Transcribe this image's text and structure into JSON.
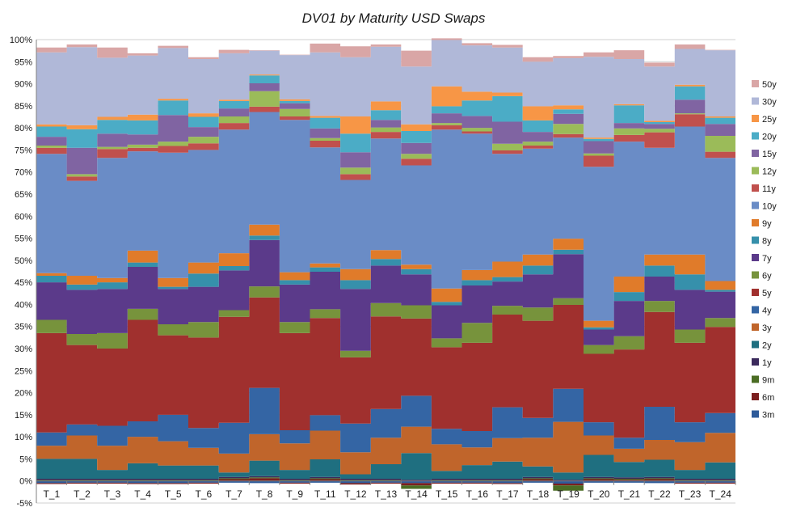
{
  "chart_data": {
    "type": "area",
    "stacked": "percent",
    "title": "DV01 by Maturity USD Swaps",
    "xlabel": "",
    "ylabel": "",
    "ylim": [
      -5,
      100
    ],
    "yticks": [
      "-5%",
      "0%",
      "5%",
      "10%",
      "15%",
      "20%",
      "25%",
      "30%",
      "35%",
      "40%",
      "45%",
      "50%",
      "55%",
      "60%",
      "65%",
      "70%",
      "75%",
      "80%",
      "85%",
      "90%",
      "95%",
      "100%"
    ],
    "grid": true,
    "legend_position": "right",
    "categories": [
      "T_1",
      "T_2",
      "T_3",
      "T_4",
      "T_5",
      "T_6",
      "T_7",
      "T_8",
      "T_9",
      "T_11",
      "T_12",
      "T_13",
      "T_14",
      "T_15",
      "T_16",
      "T_17",
      "T_18",
      "T_19",
      "T_20",
      "T_21",
      "T_22",
      "T_23",
      "T_24"
    ],
    "series": [
      {
        "name": "3m",
        "color": "#2e5b9a",
        "values": [
          -0.5,
          -0.4,
          -0.4,
          -0.5,
          -0.5,
          -0.4,
          -0.4,
          -0.5,
          -0.4,
          -0.4,
          -0.5,
          -0.4,
          -0.5,
          -0.4,
          -0.4,
          -0.5,
          -0.4,
          -0.6,
          -0.4,
          -0.4,
          -0.5,
          -0.4,
          -0.4
        ]
      },
      {
        "name": "6m",
        "color": "#7b1f1f",
        "values": [
          -0.2,
          -0.2,
          -0.2,
          -0.2,
          -0.2,
          -0.2,
          0.4,
          0.6,
          -0.2,
          0.4,
          -0.3,
          -0.2,
          -0.5,
          -0.2,
          -0.2,
          -0.2,
          0.4,
          -0.4,
          0.4,
          0.3,
          0.4,
          -0.2,
          -0.2
        ]
      },
      {
        "name": "9m",
        "color": "#4b6d24",
        "values": [
          0.2,
          0.2,
          0.2,
          0.2,
          0.2,
          0.2,
          0.2,
          0.2,
          0.2,
          0.2,
          0.2,
          0.2,
          -0.8,
          0.2,
          0.2,
          0.2,
          0.2,
          -1.2,
          0.2,
          0.2,
          0.2,
          0.2,
          0.2
        ]
      },
      {
        "name": "1y",
        "color": "#3b2a5c",
        "values": [
          0.3,
          0.3,
          0.3,
          0.3,
          0.3,
          0.3,
          0.3,
          0.3,
          0.3,
          0.3,
          0.3,
          0.3,
          0.3,
          0.3,
          0.3,
          0.3,
          0.3,
          0.3,
          0.3,
          0.3,
          0.3,
          0.3,
          0.3
        ]
      },
      {
        "name": "2y",
        "color": "#1f6f80",
        "values": [
          4.5,
          4.5,
          2.0,
          3.5,
          3.0,
          3.0,
          1.0,
          3.5,
          2.0,
          4.0,
          1.0,
          3.3,
          6.0,
          1.8,
          3.1,
          3.9,
          2.4,
          1.6,
          5.0,
          3.5,
          3.9,
          2.0,
          3.7
        ]
      },
      {
        "name": "3y",
        "color": "#c0652b",
        "values": [
          3.0,
          5.3,
          5.5,
          6.0,
          5.5,
          4.0,
          4.3,
          6.0,
          6.0,
          6.5,
          5.0,
          6.0,
          6.0,
          6.0,
          4.0,
          5.3,
          6.5,
          11.5,
          4.4,
          3.0,
          4.5,
          6.3,
          6.7
        ]
      },
      {
        "name": "4y",
        "color": "#3465a4",
        "values": [
          3.0,
          2.5,
          4.5,
          3.5,
          6.0,
          4.5,
          7.0,
          10.5,
          3.0,
          3.5,
          6.5,
          6.5,
          7.0,
          3.5,
          3.7,
          7.0,
          4.5,
          7.5,
          3.0,
          2.5,
          7.5,
          4.5,
          4.5
        ]
      },
      {
        "name": "5y",
        "color": "#a0302e",
        "values": [
          22.5,
          18.0,
          17.5,
          23.0,
          18.0,
          20.5,
          24.0,
          20.5,
          22.0,
          22.0,
          15.0,
          21.0,
          17.5,
          18.5,
          20.0,
          21.0,
          22.0,
          19.0,
          15.5,
          20.0,
          21.5,
          18.0,
          19.5
        ]
      },
      {
        "name": "6y",
        "color": "#77933c",
        "values": [
          3.0,
          2.5,
          3.5,
          2.5,
          2.5,
          3.5,
          1.5,
          2.5,
          2.5,
          2.0,
          1.5,
          3.0,
          3.0,
          2.0,
          4.5,
          2.0,
          3.0,
          1.5,
          2.0,
          3.0,
          2.5,
          3.0,
          2.0
        ]
      },
      {
        "name": "7y",
        "color": "#5b3a8a",
        "values": [
          8.5,
          10.0,
          10.0,
          9.5,
          8.0,
          8.0,
          9.0,
          10.5,
          8.5,
          8.5,
          14.0,
          8.5,
          7.0,
          7.5,
          8.5,
          5.5,
          7.5,
          10.0,
          3.5,
          8.0,
          5.5,
          9.0,
          6.0
        ]
      },
      {
        "name": "8y",
        "color": "#3690ab",
        "values": [
          1.5,
          1.2,
          1.5,
          1.0,
          0.5,
          3.0,
          1.0,
          1.0,
          1.0,
          1.0,
          2.0,
          1.5,
          1.2,
          0.8,
          1.2,
          1.0,
          2.0,
          1.0,
          0.5,
          2.0,
          2.5,
          3.5,
          0.4
        ]
      },
      {
        "name": "9y",
        "color": "#e07b2a",
        "values": [
          0.6,
          2.0,
          1.0,
          2.7,
          2.0,
          2.5,
          2.9,
          2.5,
          1.8,
          0.9,
          2.5,
          2.0,
          1.0,
          3.0,
          2.3,
          3.5,
          2.5,
          2.5,
          1.5,
          3.5,
          2.5,
          4.5,
          2.0
        ]
      },
      {
        "name": "10y",
        "color": "#6a8cc6",
        "values": [
          27.0,
          21.5,
          27.2,
          22.5,
          28.4,
          25.5,
          28.0,
          25.5,
          34.5,
          26.3,
          20.2,
          25.3,
          22.5,
          36.0,
          30.9,
          24.4,
          24.0,
          22.9,
          34.9,
          30.6,
          24.2,
          29.0,
          27.9
        ]
      },
      {
        "name": "11y",
        "color": "#c0504d",
        "values": [
          1.4,
          1.0,
          2.0,
          0.8,
          1.5,
          1.5,
          1.5,
          1.2,
          0.8,
          1.5,
          1.3,
          1.5,
          1.5,
          1.0,
          0.5,
          0.8,
          0.7,
          0.8,
          2.5,
          1.5,
          3.5,
          2.8,
          1.4
        ]
      },
      {
        "name": "12y",
        "color": "#9bbb59",
        "values": [
          0.5,
          0.5,
          0.5,
          0.7,
          1.0,
          1.5,
          1.5,
          3.5,
          1.7,
          0.6,
          1.5,
          1.0,
          1.1,
          0.5,
          0.8,
          1.5,
          0.9,
          2.3,
          0.5,
          1.5,
          0.8,
          0.2,
          3.6
        ]
      },
      {
        "name": "15y",
        "color": "#8064a2",
        "values": [
          2.0,
          6.0,
          3.0,
          2.3,
          6.0,
          2.2,
          1.8,
          1.8,
          1.3,
          2.2,
          3.5,
          1.7,
          2.5,
          2.2,
          2.7,
          5.0,
          2.2,
          2.3,
          2.8,
          1.2,
          1.1,
          3.1,
          2.7
        ]
      },
      {
        "name": "20y",
        "color": "#4bacc6",
        "values": [
          2.3,
          4.2,
          3.1,
          3.2,
          3.3,
          2.3,
          1.7,
          1.8,
          0.5,
          2.4,
          4.2,
          2.2,
          2.7,
          1.6,
          3.5,
          5.8,
          2.6,
          1.0,
          0.5,
          4.0,
          0.4,
          3.0,
          1.4
        ]
      },
      {
        "name": "25y",
        "color": "#f79646",
        "values": [
          0.5,
          0.9,
          0.7,
          1.3,
          0.4,
          0.8,
          0.3,
          0.2,
          0.4,
          0.4,
          3.9,
          2.0,
          1.5,
          4.5,
          2.0,
          0.8,
          3.2,
          0.9,
          0.3,
          0.3,
          0.3,
          0.4,
          0.3
        ]
      },
      {
        "name": "30y",
        "color": "#b0b8d8",
        "values": [
          16.3,
          17.7,
          13.4,
          13.4,
          11.5,
          12.3,
          10.5,
          5.4,
          10.0,
          14.4,
          13.4,
          12.4,
          13.1,
          10.5,
          10.5,
          10.2,
          10.1,
          10.7,
          18.3,
          10.2,
          12.3,
          8.1,
          15.0
        ]
      },
      {
        "name": "50y",
        "color": "#d9a6a6",
        "values": [
          1.1,
          0.6,
          2.3,
          0.5,
          0.5,
          0.4,
          0.8,
          0.1,
          0.1,
          2.0,
          2.5,
          0.5,
          3.6,
          0.4,
          0.5,
          0.6,
          1.0,
          0.5,
          1.0,
          2.0,
          0.9,
          1.0,
          0.1
        ]
      }
    ]
  }
}
